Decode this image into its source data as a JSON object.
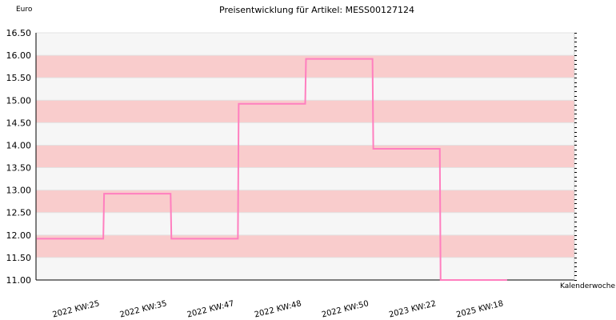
{
  "chart_data": {
    "type": "line",
    "step": true,
    "title": "Preisentwicklung für Artikel: MESS00127124",
    "ylabel": "Euro",
    "xlabel": "Kalenderwoche",
    "categories": [
      "2022 KW:25",
      "2022 KW:35",
      "2022 KW:47",
      "2022 KW:48",
      "2022 KW:50",
      "2023 KW:22",
      "2025 KW:18"
    ],
    "series": [
      {
        "values": [
          11.92,
          12.92,
          11.92,
          14.92,
          15.92,
          13.92,
          11.0
        ]
      }
    ],
    "ylim": [
      11.0,
      16.5
    ],
    "yticks": [
      "11.00",
      "11.50",
      "12.00",
      "12.50",
      "13.00",
      "13.50",
      "14.00",
      "14.50",
      "15.00",
      "15.50",
      "16.00",
      "16.50"
    ],
    "grid": true,
    "colors": {
      "line": "#ff7fbf",
      "band_pink": "#f9cccc",
      "band_gray": "#f6f6f6",
      "axis": "#000000"
    }
  }
}
